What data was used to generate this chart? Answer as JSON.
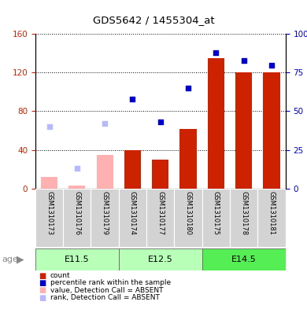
{
  "title": "GDS5642 / 1455304_at",
  "samples": [
    "GSM1310173",
    "GSM1310176",
    "GSM1310179",
    "GSM1310174",
    "GSM1310177",
    "GSM1310180",
    "GSM1310175",
    "GSM1310178",
    "GSM1310181"
  ],
  "age_groups": [
    {
      "label": "E11.5",
      "start": 0,
      "end": 3
    },
    {
      "label": "E12.5",
      "start": 3,
      "end": 6
    },
    {
      "label": "E14.5",
      "start": 6,
      "end": 9
    }
  ],
  "count_values": [
    null,
    null,
    null,
    40,
    30,
    62,
    135,
    120,
    120
  ],
  "count_absent": [
    12,
    3,
    35,
    null,
    null,
    null,
    null,
    null,
    null
  ],
  "rank_values": [
    null,
    null,
    null,
    58,
    43,
    65,
    88,
    83,
    80
  ],
  "rank_absent": [
    40,
    13,
    42,
    null,
    null,
    null,
    null,
    null,
    null
  ],
  "left_ylim": [
    0,
    160
  ],
  "right_ylim": [
    0,
    100
  ],
  "left_yticks": [
    0,
    40,
    80,
    120,
    160
  ],
  "right_yticks": [
    0,
    25,
    50,
    75,
    100
  ],
  "right_yticklabels": [
    "0",
    "25",
    "50",
    "75",
    "100%"
  ],
  "left_color": "#CC2200",
  "right_color": "#0000CC",
  "count_bar_color": "#CC2200",
  "rank_dot_color": "#0000CC",
  "absent_count_color": "#FFB0B0",
  "absent_rank_color": "#B8B8FF",
  "age_light_color": "#B8FFB8",
  "age_dark_color": "#55EE55",
  "sample_bg_color": "#D3D3D3"
}
